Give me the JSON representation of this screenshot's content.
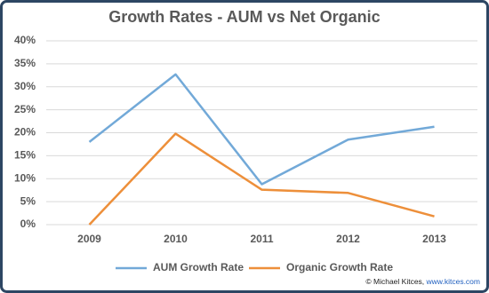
{
  "chart_data": {
    "type": "line",
    "title": "Growth Rates - AUM vs Net Organic",
    "categories": [
      "2009",
      "2010",
      "2011",
      "2012",
      "2013"
    ],
    "series": [
      {
        "name": "AUM Growth Rate",
        "color": "#72a9d8",
        "values": [
          18,
          32.7,
          8.8,
          18.5,
          21.3
        ]
      },
      {
        "name": "Organic Growth Rate",
        "color": "#ed8f3a",
        "values": [
          0,
          19.8,
          7.6,
          6.9,
          1.8
        ]
      }
    ],
    "ylim": [
      0,
      40
    ],
    "yticks": [
      {
        "value": 0,
        "label": "0%"
      },
      {
        "value": 5,
        "label": "5%"
      },
      {
        "value": 10,
        "label": "10%"
      },
      {
        "value": 15,
        "label": "15%"
      },
      {
        "value": 20,
        "label": "20%"
      },
      {
        "value": 25,
        "label": "25%"
      },
      {
        "value": 30,
        "label": "30%"
      },
      {
        "value": 35,
        "label": "35%"
      },
      {
        "value": 40,
        "label": "40%"
      }
    ],
    "grid": true,
    "legend": "bottom",
    "credit": "© Michael Kitces, ",
    "credit_link": "www.kitces.com"
  }
}
